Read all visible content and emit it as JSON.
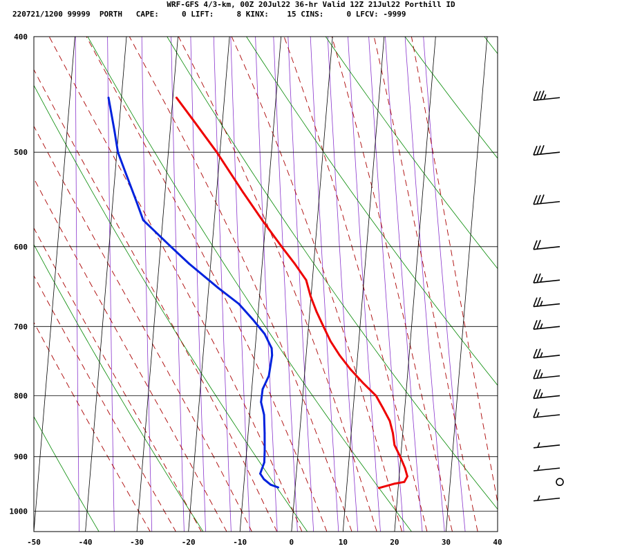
{
  "header": {
    "title": "WRF-GFS 4/3-km, 00Z 20Jul22 36-hr Valid 12Z 21Jul22 Porthill ID",
    "stats": "220721/1200 99999  PORTH   CAPE:     0 LIFT:     8 KINX:    15 CINS:     0 LFCV: -9999"
  },
  "colors": {
    "temperature": "#ee0000",
    "dewpoint": "#0022dd",
    "isotherm": "#000000",
    "dry_adiabat": "#008800",
    "moist_adiabat": "#aa0000",
    "mixing_ratio": "#8833cc",
    "wind_barb": "#000000"
  },
  "chart_data": {
    "type": "line",
    "diagram": "skew-T log-P",
    "x_axis": {
      "unit": "degC",
      "range": [
        -50,
        40
      ],
      "ticks": [
        -50,
        -40,
        -30,
        -20,
        -10,
        0,
        10,
        20,
        30,
        40
      ]
    },
    "y_axis": {
      "unit": "hPa",
      "scale": "log",
      "range": [
        400,
        1040
      ],
      "ticks": [
        400,
        500,
        600,
        700,
        800,
        900,
        1000
      ]
    },
    "grid": true,
    "series": [
      {
        "key": "temperature",
        "points": [
          {
            "p": 956,
            "t": 16.3
          },
          {
            "p": 948,
            "t": 19.3
          },
          {
            "p": 945,
            "t": 21.1
          },
          {
            "p": 935,
            "t": 21.6
          },
          {
            "p": 920,
            "t": 21.0
          },
          {
            "p": 900,
            "t": 19.9
          },
          {
            "p": 880,
            "t": 18.6
          },
          {
            "p": 860,
            "t": 18.1
          },
          {
            "p": 840,
            "t": 17.3
          },
          {
            "p": 820,
            "t": 15.8
          },
          {
            "p": 800,
            "t": 14.2
          },
          {
            "p": 780,
            "t": 11.4
          },
          {
            "p": 760,
            "t": 8.8
          },
          {
            "p": 740,
            "t": 6.5
          },
          {
            "p": 720,
            "t": 4.5
          },
          {
            "p": 700,
            "t": 2.9
          },
          {
            "p": 680,
            "t": 1.3
          },
          {
            "p": 660,
            "t": -0.1
          },
          {
            "p": 640,
            "t": -1.2
          },
          {
            "p": 620,
            "t": -3.7
          },
          {
            "p": 600,
            "t": -6.5
          },
          {
            "p": 570,
            "t": -10.7
          },
          {
            "p": 540,
            "t": -14.9
          },
          {
            "p": 500,
            "t": -20.6
          },
          {
            "p": 470,
            "t": -25.7
          },
          {
            "p": 450,
            "t": -29.3
          }
        ]
      },
      {
        "key": "dewpoint",
        "points": [
          {
            "p": 955,
            "t": -3.3
          },
          {
            "p": 950,
            "t": -4.8
          },
          {
            "p": 940,
            "t": -6.2
          },
          {
            "p": 930,
            "t": -7.0
          },
          {
            "p": 910,
            "t": -6.4
          },
          {
            "p": 890,
            "t": -6.5
          },
          {
            "p": 860,
            "t": -6.8
          },
          {
            "p": 830,
            "t": -7.2
          },
          {
            "p": 810,
            "t": -8.0
          },
          {
            "p": 790,
            "t": -7.9
          },
          {
            "p": 770,
            "t": -6.9
          },
          {
            "p": 740,
            "t": -6.6
          },
          {
            "p": 730,
            "t": -6.8
          },
          {
            "p": 710,
            "t": -8.4
          },
          {
            "p": 690,
            "t": -11.0
          },
          {
            "p": 670,
            "t": -13.9
          },
          {
            "p": 650,
            "t": -18.1
          },
          {
            "p": 620,
            "t": -24.2
          },
          {
            "p": 600,
            "t": -28.0
          },
          {
            "p": 570,
            "t": -33.8
          },
          {
            "p": 550,
            "t": -35.4
          },
          {
            "p": 520,
            "t": -38.0
          },
          {
            "p": 500,
            "t": -39.8
          },
          {
            "p": 480,
            "t": -40.8
          },
          {
            "p": 450,
            "t": -42.5
          }
        ]
      }
    ],
    "wind_barbs": [
      {
        "p": 450,
        "speed_kt": 35
      },
      {
        "p": 500,
        "speed_kt": 30
      },
      {
        "p": 550,
        "speed_kt": 30
      },
      {
        "p": 600,
        "speed_kt": 20
      },
      {
        "p": 640,
        "speed_kt": 25
      },
      {
        "p": 670,
        "speed_kt": 25
      },
      {
        "p": 700,
        "speed_kt": 25
      },
      {
        "p": 740,
        "speed_kt": 25
      },
      {
        "p": 770,
        "speed_kt": 25
      },
      {
        "p": 800,
        "speed_kt": 25
      },
      {
        "p": 830,
        "speed_kt": 15
      },
      {
        "p": 880,
        "speed_kt": 5
      },
      {
        "p": 920,
        "speed_kt": 5
      },
      {
        "p": 945,
        "speed_kt": 0
      },
      {
        "p": 975,
        "speed_kt": 5
      }
    ]
  }
}
